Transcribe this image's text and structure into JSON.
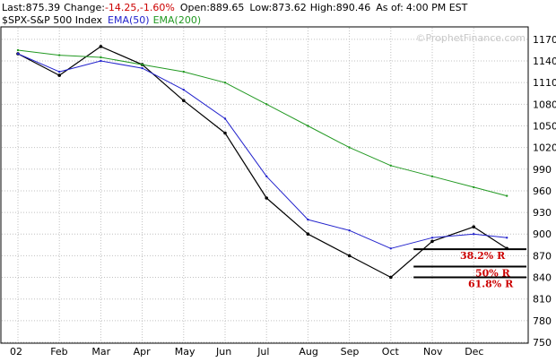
{
  "header": {
    "last_label": "Last:",
    "last_value": "875.39",
    "change_label": "Change:",
    "change_value": "-14.25,-1.60%",
    "open_label": "Open:",
    "open_value": "889.65",
    "low_label": "Low:",
    "low_value": "873.62",
    "high_label": "High:",
    "high_value": "890.46",
    "asof_label": "As of:",
    "asof_value": "4:00 PM EST"
  },
  "legend": {
    "symbol": "$SPX-S&P 500 Index",
    "ema50": "EMA(50)",
    "ema200": "EMA(200)"
  },
  "watermark": "©ProphetFinance.com",
  "colors": {
    "price": "#000000",
    "ema50": "#2222cc",
    "ema200": "#229922",
    "change": "#cc0000",
    "retracement": "#cc0000",
    "grid": "#c0c0c0",
    "background": "#ffffff"
  },
  "chart_data": {
    "type": "line",
    "title": "$SPX-S&P 500 Index",
    "yaxis_position": "right",
    "grid": true,
    "legend_placement": "top-left",
    "x_ticks": [
      "02",
      "Feb",
      "Mar",
      "Apr",
      "May",
      "Jun",
      "Jul",
      "Aug",
      "Sep",
      "Oct",
      "Nov",
      "Dec"
    ],
    "y_ticks": [
      750,
      780,
      810,
      840,
      870,
      900,
      930,
      960,
      990,
      1020,
      1050,
      1080,
      1110,
      1140,
      1170
    ],
    "ylim": [
      750,
      1186
    ],
    "x_months": [
      0,
      1,
      2,
      3,
      4,
      5,
      6,
      7,
      8,
      9,
      10,
      11,
      11.8
    ],
    "series": [
      {
        "name": "$SPX-S&P 500 Index",
        "values": [
          1150,
          1120,
          1160,
          1135,
          1085,
          1040,
          950,
          900,
          870,
          840,
          890,
          910,
          880
        ]
      },
      {
        "name": "EMA(50)",
        "values": [
          1150,
          1125,
          1140,
          1130,
          1100,
          1060,
          980,
          920,
          905,
          880,
          895,
          900,
          895
        ]
      },
      {
        "name": "EMA(200)",
        "values": [
          1155,
          1148,
          1145,
          1135,
          1125,
          1110,
          1080,
          1050,
          1020,
          995,
          980,
          965,
          953
        ]
      }
    ],
    "annotations": [
      {
        "label": "38.2% R",
        "value": 879
      },
      {
        "label": "50% R",
        "value": 855
      },
      {
        "label": "61.8% R",
        "value": 840
      }
    ]
  }
}
